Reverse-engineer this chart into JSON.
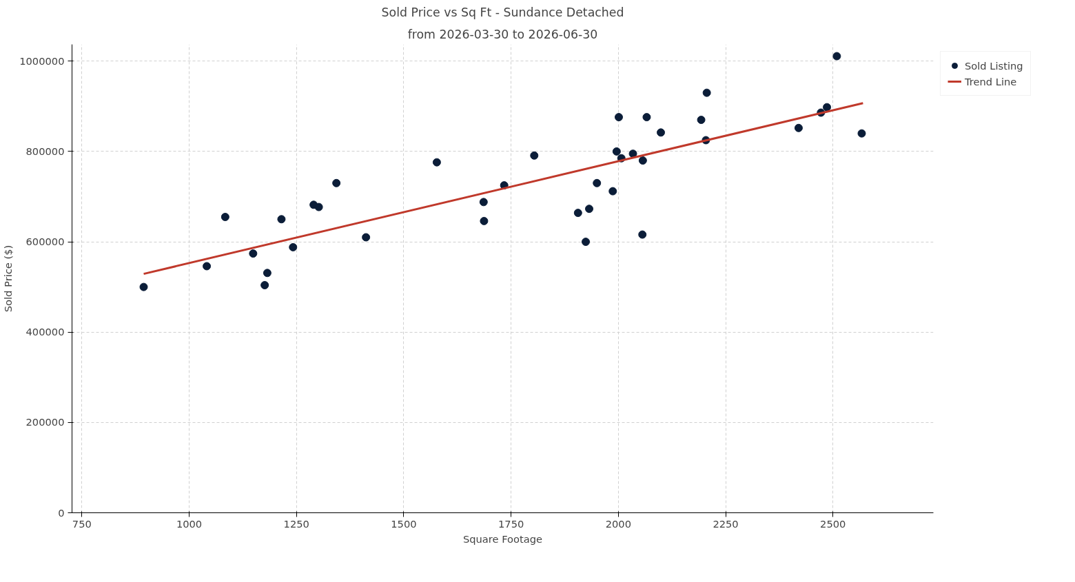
{
  "chart_data": {
    "type": "scatter",
    "title": "Sold Price vs Sq Ft - Sundance Detached",
    "subtitle": "from 2026-03-30 to 2026-06-30",
    "xlabel": "Square Footage",
    "ylabel": "Sold Price ($)",
    "xlim": [
      727,
      2734
    ],
    "xticks": [
      750,
      1000,
      1250,
      1500,
      1750,
      2000,
      2250,
      2500
    ],
    "ylim": [
      0,
      1037000
    ],
    "yticks": [
      0,
      200000,
      400000,
      600000,
      800000,
      1000000
    ],
    "grid": true,
    "legend": "top right",
    "marker": "circle",
    "series": [
      {
        "name": "Sold Listing",
        "color": "#0b1d38",
        "x": [
          894,
          1041,
          1084,
          1149,
          1176,
          1182,
          1215,
          1242,
          1290,
          1302,
          1343,
          1412,
          1577,
          1686,
          1687,
          1734,
          1804,
          1906,
          1924,
          1932,
          1950,
          1987,
          1996,
          2001,
          2007,
          2034,
          2056,
          2057,
          2066,
          2099,
          2193,
          2204,
          2206,
          2420,
          2472,
          2486,
          2509,
          2567
        ],
        "values": [
          500000,
          546000,
          655000,
          574000,
          504000,
          531000,
          650000,
          588000,
          682000,
          677000,
          730000,
          610000,
          776000,
          688000,
          646000,
          725000,
          791000,
          664000,
          600000,
          673000,
          730000,
          712000,
          800000,
          876000,
          785000,
          795000,
          616000,
          780000,
          876000,
          842000,
          870000,
          825000,
          930000,
          852000,
          886000,
          898000,
          1011000,
          840000
        ]
      },
      {
        "name": "Trend Line",
        "type": "line",
        "color": "#c0392b",
        "line_style": "solid",
        "marker": "none",
        "x": [
          894,
          2570
        ],
        "values": [
          529000,
          907000
        ]
      }
    ]
  }
}
